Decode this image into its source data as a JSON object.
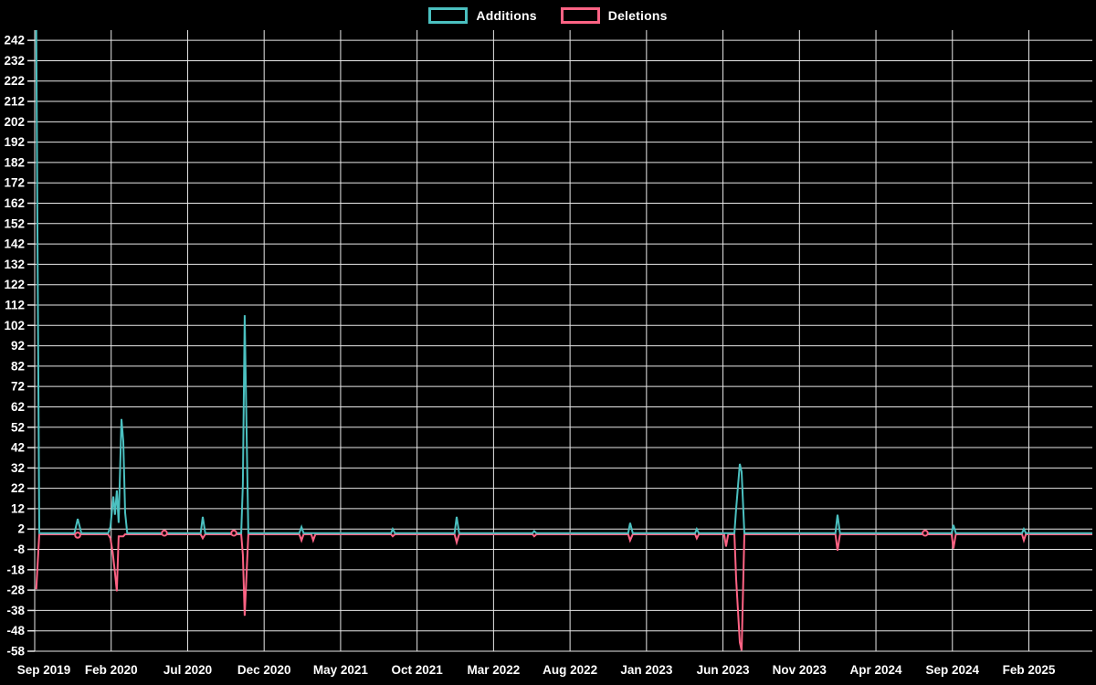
{
  "colors": {
    "background": "#000000",
    "grid": "#e8e8e8",
    "text": "#ffffff",
    "additions": "#4bc0c0",
    "deletions": "#ff6384"
  },
  "chart_data": {
    "type": "line",
    "title": "",
    "legend_position": "top",
    "x_axis": {
      "unit": "months-since-first-tick",
      "tick_labels": [
        "Sep 2019",
        "Feb 2020",
        "Jul 2020",
        "Dec 2020",
        "May 2021",
        "Oct 2021",
        "Mar 2022",
        "Aug 2022",
        "Jan 2023",
        "Jun 2023",
        "Nov 2023",
        "Apr 2024",
        "Sep 2024",
        "Feb 2025"
      ],
      "months_per_tick": 5,
      "total_months_span": 69.15
    },
    "y_axis": {
      "tick_labels": [
        242,
        232,
        222,
        212,
        202,
        192,
        182,
        172,
        162,
        152,
        142,
        132,
        122,
        112,
        102,
        92,
        82,
        72,
        62,
        52,
        42,
        32,
        22,
        12,
        2,
        -8,
        -18,
        -28,
        -38,
        -48,
        -58
      ],
      "min": -58,
      "max": 247,
      "grid": true
    },
    "series": [
      {
        "name": "Additions",
        "color": "#4bc0c0",
        "points": [
          [
            0.1,
            247
          ],
          [
            0.3,
            0
          ],
          [
            2.6,
            0
          ],
          [
            2.81,
            7
          ],
          [
            3.05,
            0
          ],
          [
            4.8,
            0
          ],
          [
            4.95,
            3
          ],
          [
            5.14,
            18
          ],
          [
            5.25,
            9
          ],
          [
            5.37,
            21
          ],
          [
            5.49,
            5
          ],
          [
            5.67,
            56
          ],
          [
            5.79,
            45
          ],
          [
            5.91,
            10
          ],
          [
            6.05,
            0
          ],
          [
            10.85,
            0
          ],
          [
            10.99,
            8
          ],
          [
            11.15,
            0
          ],
          [
            13.5,
            0
          ],
          [
            13.61,
            24
          ],
          [
            13.73,
            107
          ],
          [
            13.85,
            52
          ],
          [
            13.97,
            0
          ],
          [
            17.3,
            0
          ],
          [
            17.44,
            3
          ],
          [
            17.58,
            0
          ],
          [
            23.3,
            0
          ],
          [
            23.41,
            2
          ],
          [
            23.55,
            0
          ],
          [
            27.45,
            0
          ],
          [
            27.59,
            8
          ],
          [
            27.75,
            0
          ],
          [
            32.55,
            0
          ],
          [
            32.66,
            1
          ],
          [
            32.8,
            0
          ],
          [
            38.8,
            0
          ],
          [
            38.93,
            5
          ],
          [
            39.1,
            0
          ],
          [
            43.18,
            0
          ],
          [
            43.29,
            2
          ],
          [
            43.42,
            0
          ],
          [
            45.75,
            0
          ],
          [
            45.86,
            12
          ],
          [
            46.1,
            34
          ],
          [
            46.22,
            30
          ],
          [
            46.4,
            0
          ],
          [
            52.35,
            0
          ],
          [
            52.49,
            9
          ],
          [
            52.65,
            0
          ],
          [
            59.95,
            0
          ],
          [
            60.07,
            4
          ],
          [
            60.22,
            0
          ],
          [
            64.55,
            0
          ],
          [
            64.67,
            2
          ],
          [
            64.8,
            0
          ],
          [
            69.15,
            0
          ]
        ],
        "markers": []
      },
      {
        "name": "Deletions",
        "color": "#ff6384",
        "points": [
          [
            0.1,
            -27
          ],
          [
            0.3,
            0
          ],
          [
            4.8,
            0
          ],
          [
            4.95,
            -2
          ],
          [
            5.1,
            -9
          ],
          [
            5.25,
            -19
          ],
          [
            5.37,
            -28
          ],
          [
            5.49,
            -1
          ],
          [
            5.79,
            -1
          ],
          [
            5.91,
            0
          ],
          [
            10.85,
            0
          ],
          [
            10.99,
            -2
          ],
          [
            11.15,
            0
          ],
          [
            13.5,
            0
          ],
          [
            13.61,
            -10
          ],
          [
            13.73,
            -40
          ],
          [
            13.85,
            -20
          ],
          [
            13.97,
            0
          ],
          [
            17.3,
            0
          ],
          [
            17.44,
            -3
          ],
          [
            17.58,
            0
          ],
          [
            18.08,
            0
          ],
          [
            18.21,
            -3
          ],
          [
            18.35,
            0
          ],
          [
            23.3,
            0
          ],
          [
            23.41,
            -1
          ],
          [
            23.55,
            0
          ],
          [
            27.45,
            0
          ],
          [
            27.59,
            -4
          ],
          [
            27.75,
            0
          ],
          [
            32.55,
            0
          ],
          [
            32.66,
            -1
          ],
          [
            32.8,
            0
          ],
          [
            38.8,
            0
          ],
          [
            38.93,
            -3
          ],
          [
            39.1,
            0
          ],
          [
            43.18,
            0
          ],
          [
            43.29,
            -2
          ],
          [
            43.42,
            0
          ],
          [
            45.08,
            0
          ],
          [
            45.2,
            -6
          ],
          [
            45.34,
            0
          ],
          [
            45.75,
            0
          ],
          [
            45.86,
            -22
          ],
          [
            46.1,
            -53
          ],
          [
            46.22,
            -57
          ],
          [
            46.4,
            0
          ],
          [
            52.35,
            0
          ],
          [
            52.49,
            -8
          ],
          [
            52.65,
            0
          ],
          [
            59.95,
            0
          ],
          [
            60.07,
            -7
          ],
          [
            60.22,
            0
          ],
          [
            64.55,
            0
          ],
          [
            64.67,
            -3
          ],
          [
            64.8,
            0
          ],
          [
            69.15,
            0
          ]
        ],
        "markers": [
          {
            "m": 2.81,
            "v": -1
          },
          {
            "m": 8.48,
            "v": 0
          },
          {
            "m": 13.02,
            "v": 0
          },
          {
            "m": 58.22,
            "v": 0
          }
        ]
      }
    ]
  }
}
